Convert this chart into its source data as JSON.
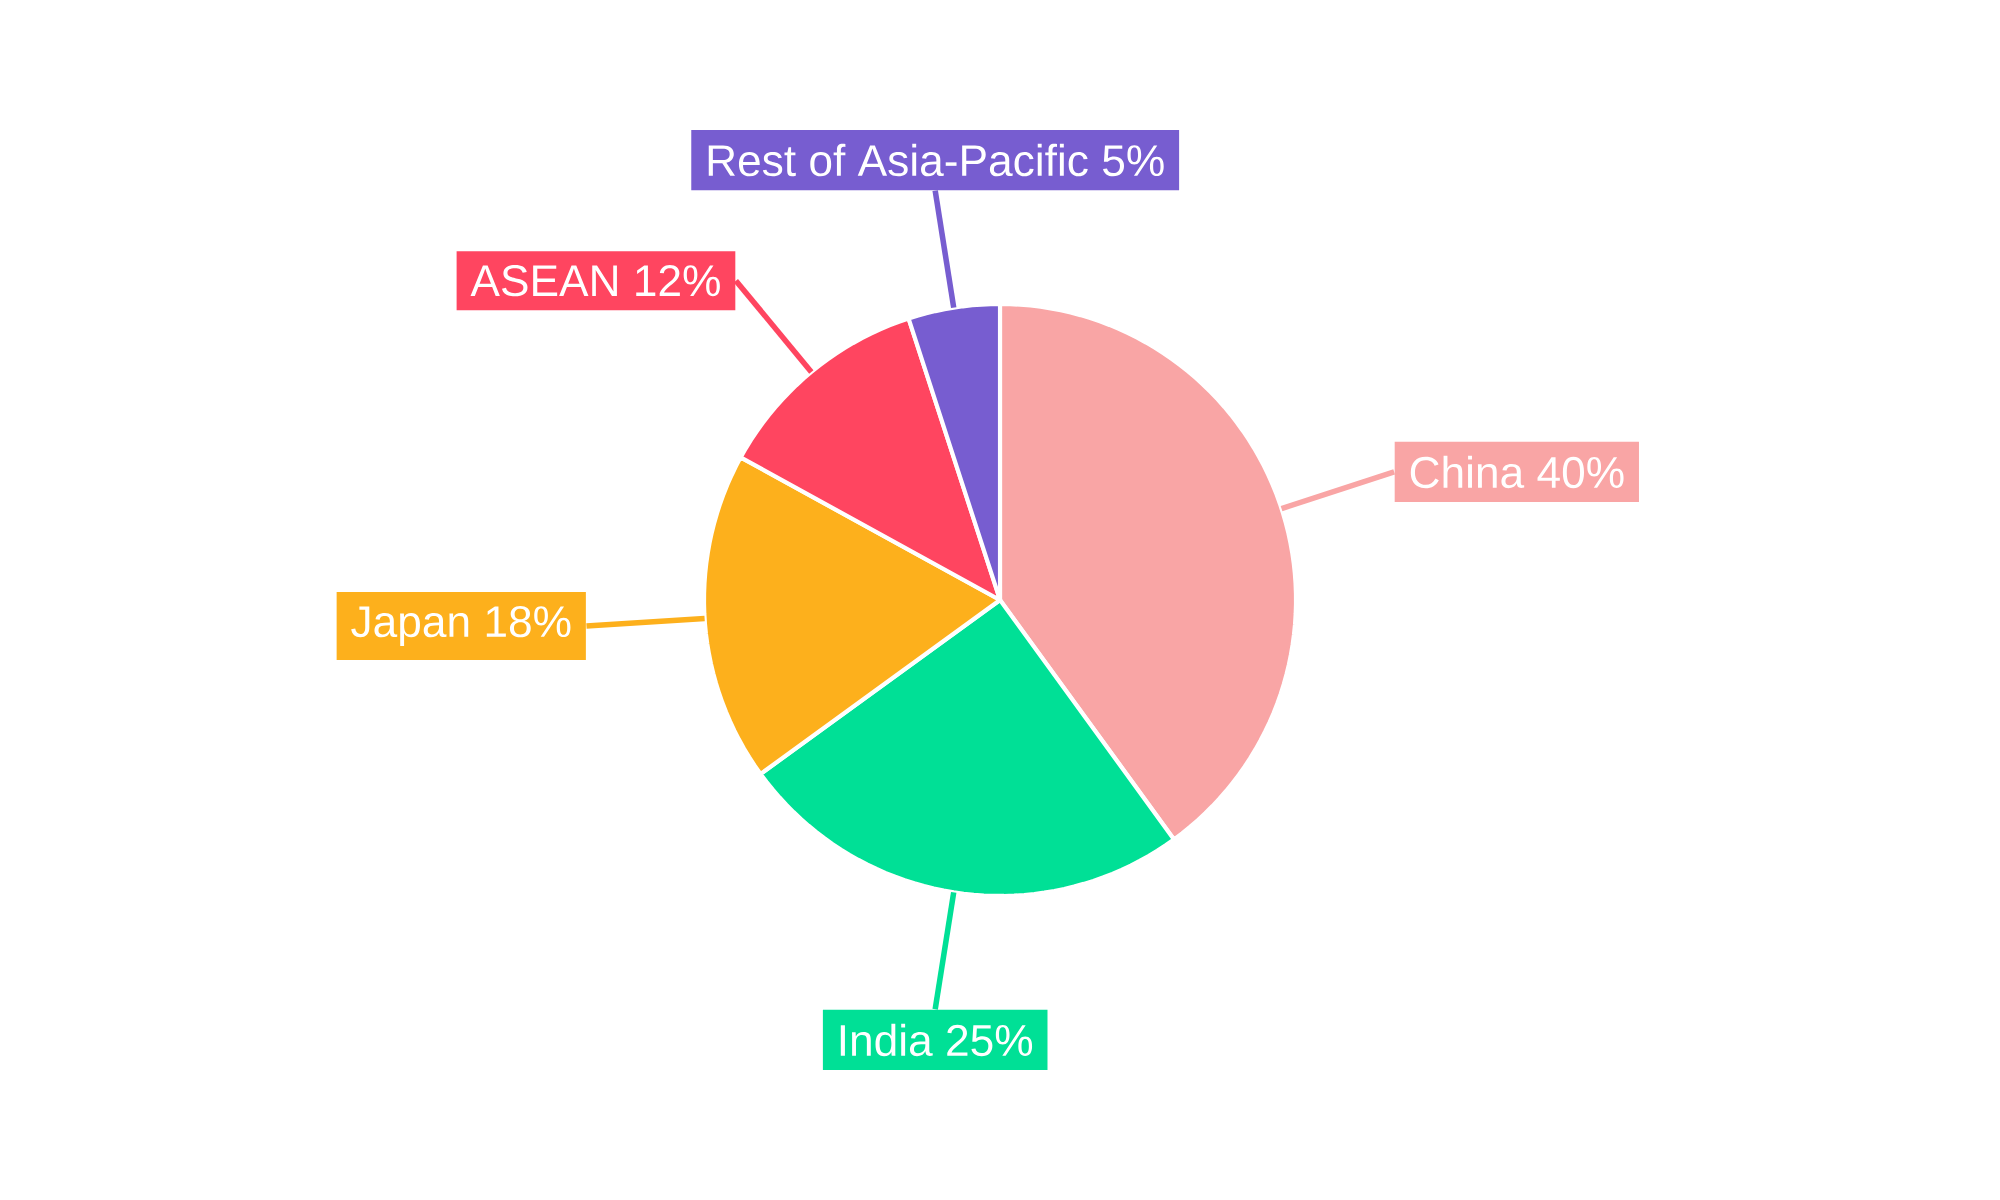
{
  "chart_data": {
    "type": "pie",
    "categories": [
      "China",
      "India",
      "Japan",
      "ASEAN",
      "Rest of Asia-Pacific"
    ],
    "values": [
      40,
      25,
      18,
      12,
      5
    ],
    "value_labels": [
      "40%",
      "25%",
      "18%",
      "12%",
      "5%"
    ],
    "colors": [
      "#f9a5a5",
      "#00e096",
      "#fdb01c",
      "#ff4560",
      "#775dd0"
    ]
  }
}
